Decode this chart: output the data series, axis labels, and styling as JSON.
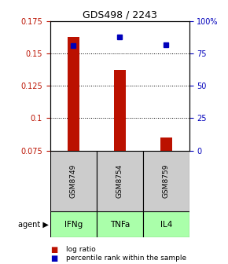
{
  "title": "GDS498 / 2243",
  "samples": [
    "GSM8749",
    "GSM8754",
    "GSM8759"
  ],
  "agents": [
    "IFNg",
    "TNFa",
    "IL4"
  ],
  "bar_positions": [
    1,
    2,
    3
  ],
  "log_ratios": [
    0.163,
    0.137,
    0.085
  ],
  "percentile_ranks": [
    81,
    88,
    82
  ],
  "bar_bottom": 0.075,
  "ylim_left": [
    0.075,
    0.175
  ],
  "ylim_right": [
    0,
    100
  ],
  "yticks_left": [
    0.075,
    0.1,
    0.125,
    0.15,
    0.175
  ],
  "yticks_right": [
    0,
    25,
    50,
    75,
    100
  ],
  "ytick_labels_right": [
    "0",
    "25",
    "50",
    "75",
    "100%"
  ],
  "bar_color": "#bb1100",
  "dot_color": "#0000bb",
  "sample_box_color": "#cccccc",
  "agent_box_color": "#aaffaa",
  "agent_label": "agent",
  "legend_bar_label": "log ratio",
  "legend_dot_label": "percentile rank within the sample",
  "bar_width": 0.25,
  "xlim": [
    0.5,
    3.5
  ],
  "title_fontsize": 9,
  "tick_fontsize": 7,
  "sample_fontsize": 6.5,
  "agent_fontsize": 7.5,
  "legend_fontsize": 6.5
}
